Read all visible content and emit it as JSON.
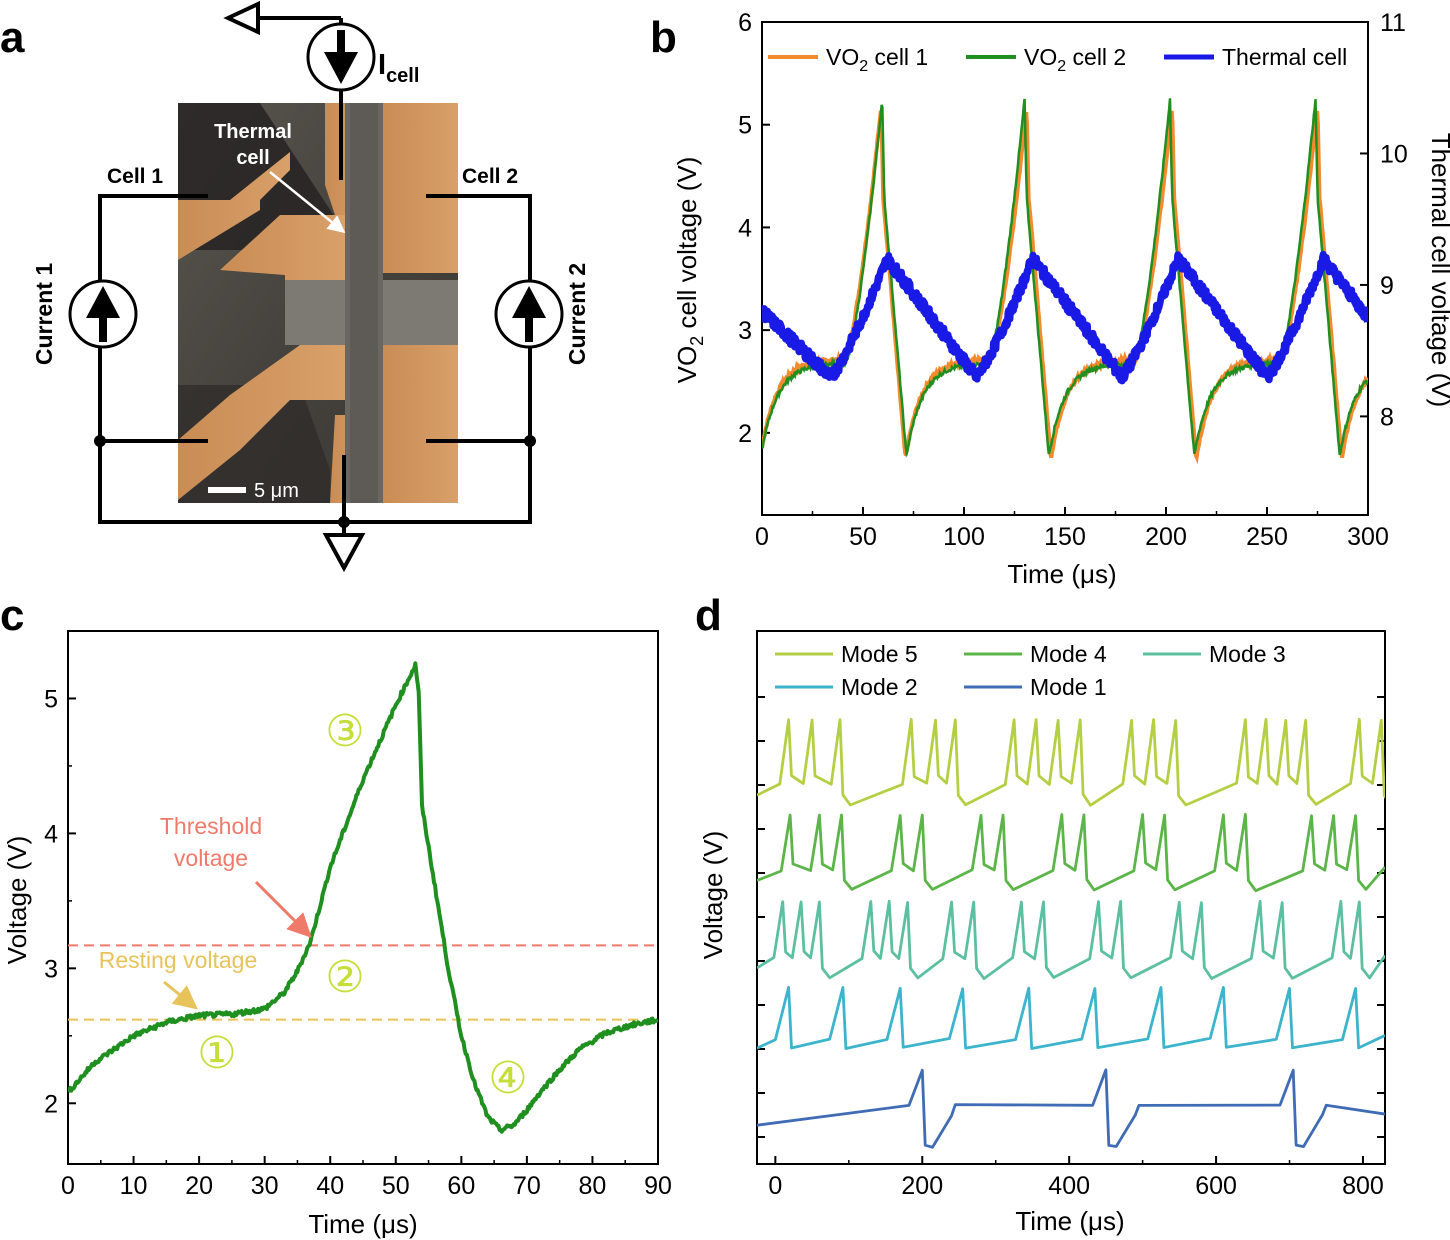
{
  "panels": {
    "a": "a",
    "b": "b",
    "c": "c",
    "d": "d"
  },
  "schematic": {
    "icell_main": "I",
    "icell_sub": "cell",
    "thermal_cell_line1": "Thermal",
    "thermal_cell_line2": "cell",
    "cell1": "Cell 1",
    "cell2": "Cell 2",
    "current1": "Current 1",
    "current2": "Current 2",
    "scale_bar": "5 μm"
  },
  "colors": {
    "vo2_cell_1": "#f28a2e",
    "vo2_cell_2": "#1f8f1f",
    "thermal_cell": "#1a1ae6",
    "trace_c": "#1f8f1f",
    "threshold": "#f07a6a",
    "resting": "#e8c25a",
    "circled_numbers": "#c6de3a",
    "mode5": "#b5cf45",
    "mode4": "#5cb548",
    "mode3": "#5cc0a0",
    "mode2": "#3cb4cc",
    "mode1": "#3f6cb4"
  },
  "chart_data": [
    {
      "id": "b",
      "type": "line",
      "xlabel": "Time (μs)",
      "ylabel": "VO2 cell voltage (V)",
      "ylabel_main": "VO",
      "ylabel_sub": "2",
      "ylabel_rest": " cell voltage (V)",
      "y2label": "Thermal cell voltage (V)",
      "xlim": [
        0,
        300
      ],
      "ylim": [
        1.2,
        6
      ],
      "y2lim": [
        7.25,
        11
      ],
      "xticks": [
        "0",
        "50",
        "100",
        "150",
        "200",
        "250",
        "300"
      ],
      "yticks": [
        "2",
        "3",
        "4",
        "5",
        "6"
      ],
      "y2ticks": [
        "8",
        "9",
        "10",
        "11"
      ],
      "period_us": 72,
      "series": [
        {
          "name": "VO2 cell 1",
          "label_main": "VO",
          "label_sub": "2",
          "label_rest": " cell 1",
          "axis": "left",
          "peaks_us": [
            59,
            131,
            203,
            275
          ],
          "peak_V": 5.18,
          "min_V": 1.75,
          "rest_V": 2.72
        },
        {
          "name": "VO2 cell 2",
          "label_main": "VO",
          "label_sub": "2",
          "label_rest": " cell 2",
          "axis": "left",
          "peaks_us": [
            59.5,
            130,
            202,
            274
          ],
          "peak_V": 5.25,
          "min_V": 1.78,
          "rest_V": 2.68
        },
        {
          "name": "Thermal cell",
          "axis": "right",
          "peaks_us": [
            62,
            134,
            206,
            278
          ],
          "peak_V": 9.2,
          "min_V": 8.3,
          "start_V": 8.8
        }
      ]
    },
    {
      "id": "c",
      "type": "line",
      "xlabel": "Time (μs)",
      "ylabel": "Voltage (V)",
      "xlim": [
        0,
        90
      ],
      "ylim": [
        1.55,
        5.5
      ],
      "xticks": [
        "0",
        "10",
        "20",
        "30",
        "40",
        "50",
        "60",
        "70",
        "80",
        "90"
      ],
      "yticks": [
        "2",
        "3",
        "4",
        "5"
      ],
      "series": [
        {
          "name": "Cell voltage",
          "x": [
            0,
            4,
            10,
            15,
            20,
            25,
            30,
            33,
            35,
            37,
            40,
            45,
            50,
            53,
            53.5,
            54,
            56,
            58,
            60,
            62,
            64,
            66,
            68,
            70,
            72,
            75,
            78,
            82,
            86,
            90
          ],
          "y": [
            2.08,
            2.3,
            2.5,
            2.6,
            2.65,
            2.66,
            2.7,
            2.82,
            2.98,
            3.2,
            3.75,
            4.4,
            4.95,
            5.25,
            5.05,
            4.2,
            3.6,
            3.0,
            2.5,
            2.15,
            1.9,
            1.8,
            1.84,
            1.95,
            2.08,
            2.25,
            2.4,
            2.52,
            2.58,
            2.62
          ]
        }
      ],
      "threshold_V": 3.17,
      "resting_V": 2.62,
      "annotations": {
        "threshold": "Threshold voltage",
        "threshold_line1": "Threshold",
        "threshold_line2": "voltage",
        "resting": "Resting voltage",
        "phases": [
          "①",
          "②",
          "③",
          "④"
        ]
      }
    },
    {
      "id": "d",
      "type": "line",
      "xlabel": "Time (μs)",
      "ylabel": "Voltage (V)",
      "xlim": [
        -25,
        830
      ],
      "xticks": [
        "0",
        "200",
        "400",
        "600",
        "800"
      ],
      "series": [
        {
          "name": "Mode 5",
          "bursts": [
            [
              18,
              50,
              88
            ],
            [
              185,
              218,
              245
            ],
            [
              325,
              355,
              385,
              415
            ],
            [
              485,
              515,
              545
            ],
            [
              640,
              668,
              695,
              722
            ],
            [
              795,
              825
            ]
          ]
        },
        {
          "name": "Mode 4",
          "bursts": [
            [
              20,
              60,
              90
            ],
            [
              170,
              200
            ],
            [
              280,
              310
            ],
            [
              390,
              420
            ],
            [
              500,
              530
            ],
            [
              610,
              640
            ],
            [
              730,
              760,
              790
            ]
          ]
        },
        {
          "name": "Mode 3",
          "bursts": [
            [
              10,
              35,
              60
            ],
            [
              130,
              155,
              180
            ],
            [
              240,
              270
            ],
            [
              335,
              365
            ],
            [
              440,
              470
            ],
            [
              550,
              580
            ],
            [
              660,
              690
            ],
            [
              770,
              795
            ]
          ]
        },
        {
          "name": "Mode 2",
          "spikes": [
            18,
            92,
            170,
            255,
            345,
            435,
            525,
            610,
            700,
            790
          ]
        },
        {
          "name": "Mode 1",
          "spikes": [
            200,
            450,
            705
          ]
        }
      ]
    }
  ]
}
